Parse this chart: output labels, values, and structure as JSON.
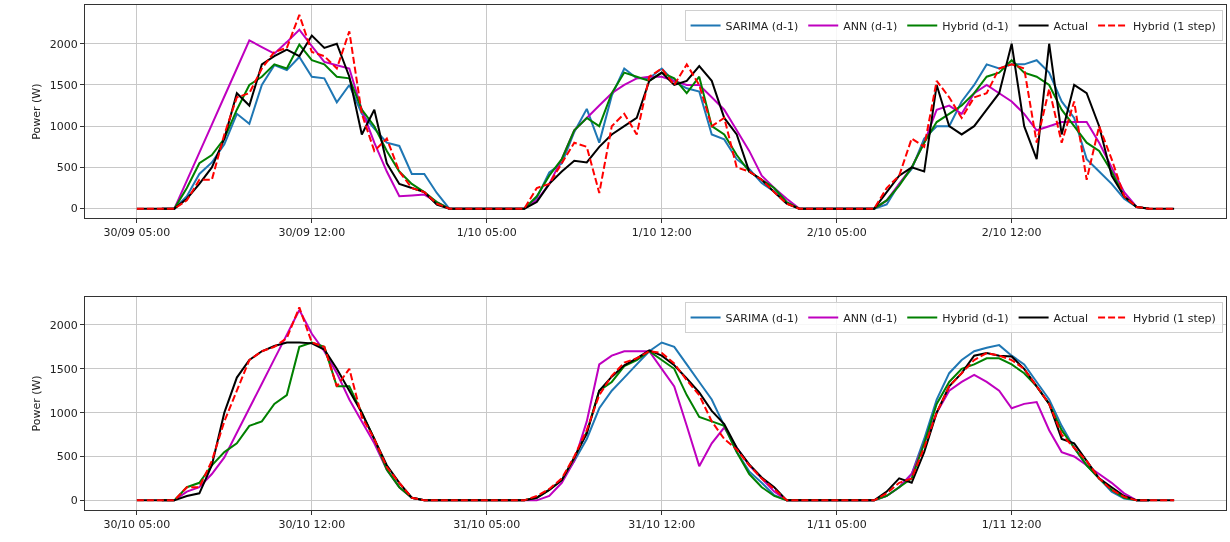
{
  "chart_data": [
    {
      "type": "line",
      "ylabel": "Power (W)",
      "grid": true,
      "legend": "top right",
      "categories": [
        "30/09 05:00",
        null,
        null,
        null,
        null,
        null,
        null,
        null,
        null,
        null,
        null,
        null,
        null,
        null,
        "30/09 12:00",
        null,
        null,
        null,
        null,
        null,
        null,
        null,
        null,
        null,
        null,
        null,
        null,
        null,
        "1/10 05:00",
        null,
        null,
        null,
        null,
        null,
        null,
        null,
        null,
        null,
        null,
        null,
        null,
        null,
        "1/10 12:00",
        null,
        null,
        null,
        null,
        null,
        null,
        null,
        null,
        null,
        null,
        null,
        null,
        null,
        "2/10 05:00",
        null,
        null,
        null,
        null,
        null,
        null,
        null,
        null,
        null,
        null,
        null,
        null,
        null,
        "2/10 12:00",
        null,
        null,
        null,
        null,
        null,
        null,
        null,
        null,
        null,
        null,
        null,
        null,
        null
      ],
      "ylim": [
        -115,
        2470
      ],
      "yticks": [
        0,
        500,
        1000,
        1500,
        2000
      ],
      "series": [
        {
          "name": "SARIMA (d-1)",
          "color": "#1f77b4",
          "line_style": "solid",
          "values": [
            null,
            null,
            0,
            0,
            150,
            420,
            560,
            780,
            1150,
            1030,
            1500,
            1740,
            1680,
            1840,
            1600,
            1580,
            1290,
            1500,
            1150,
            970,
            800,
            760,
            420,
            420,
            190,
            0,
            0,
            0,
            0,
            0,
            0,
            0,
            130,
            440,
            550,
            930,
            1210,
            800,
            1370,
            1700,
            1580,
            1580,
            1700,
            1540,
            1460,
            1420,
            900,
            840,
            600,
            480,
            310,
            210,
            70,
            0,
            0,
            0,
            0,
            0,
            0,
            0,
            50,
            300,
            480,
            850,
            1000,
            1000,
            1300,
            1500,
            1750,
            1700,
            1750,
            1750,
            1800,
            1650,
            1300,
            1100,
            600,
            450,
            300,
            120,
            20,
            0,
            null,
            null
          ]
        },
        {
          "name": "ANN (d-1)",
          "color": "#bf00bf",
          "line_style": "solid",
          "values": [
            null,
            null,
            0,
            0,
            340,
            680,
            1020,
            1360,
            1700,
            2040,
            1960,
            1880,
            2020,
            2170,
            1970,
            1780,
            1740,
            1700,
            1200,
            800,
            450,
            150,
            160,
            170,
            80,
            0,
            0,
            0,
            0,
            0,
            0,
            0,
            100,
            300,
            600,
            950,
            1100,
            1250,
            1400,
            1500,
            1580,
            1600,
            1600,
            1550,
            1500,
            1500,
            1350,
            1200,
            950,
            700,
            400,
            250,
            120,
            0,
            0,
            0,
            0,
            0,
            0,
            0,
            100,
            300,
            500,
            800,
            1200,
            1250,
            1150,
            1400,
            1500,
            1400,
            1300,
            1150,
            950,
            1000,
            1050,
            1050,
            1050,
            800,
            500,
            200,
            20,
            0,
            null,
            null
          ]
        },
        {
          "name": "Hybrid (d-1)",
          "color": "#008000",
          "line_style": "solid",
          "values": [
            null,
            null,
            0,
            0,
            250,
            550,
            650,
            850,
            1200,
            1500,
            1600,
            1750,
            1700,
            1990,
            1800,
            1750,
            1600,
            1580,
            1200,
            1000,
            700,
            450,
            300,
            200,
            80,
            0,
            0,
            0,
            0,
            0,
            0,
            0,
            150,
            400,
            600,
            950,
            1100,
            1000,
            1400,
            1650,
            1600,
            1550,
            1650,
            1580,
            1400,
            1600,
            1000,
            900,
            650,
            450,
            350,
            250,
            80,
            0,
            0,
            0,
            0,
            0,
            0,
            0,
            100,
            280,
            500,
            800,
            1050,
            1150,
            1250,
            1400,
            1600,
            1650,
            1800,
            1650,
            1600,
            1500,
            1200,
            1000,
            800,
            700,
            450,
            150,
            20,
            0,
            null,
            null
          ]
        },
        {
          "name": "Actual",
          "color": "#000000",
          "line_style": "solid",
          "values": [
            0,
            0,
            0,
            0,
            120,
            300,
            500,
            850,
            1400,
            1250,
            1750,
            1850,
            1930,
            1850,
            2100,
            1950,
            2000,
            1600,
            900,
            1200,
            550,
            300,
            250,
            200,
            50,
            0,
            0,
            0,
            0,
            0,
            0,
            0,
            80,
            300,
            450,
            580,
            560,
            750,
            900,
            1000,
            1100,
            1550,
            1650,
            1500,
            1550,
            1730,
            1550,
            1100,
            900,
            450,
            350,
            200,
            60,
            0,
            0,
            0,
            0,
            0,
            0,
            0,
            200,
            400,
            500,
            450,
            1500,
            1000,
            900,
            1000,
            1200,
            1400,
            2000,
            1000,
            600,
            2000,
            900,
            1500,
            1400,
            1000,
            400,
            150,
            20,
            0,
            0,
            0
          ]
        },
        {
          "name": "Hybrid (1 step)",
          "color": "#ff0000",
          "line_style": "dashed",
          "values": [
            0,
            0,
            0,
            0,
            100,
            350,
            350,
            900,
            1350,
            1400,
            1700,
            1900,
            1950,
            2350,
            1900,
            1850,
            1700,
            2150,
            1150,
            700,
            850,
            450,
            250,
            200,
            60,
            0,
            0,
            0,
            0,
            0,
            0,
            0,
            250,
            300,
            550,
            800,
            750,
            190,
            1000,
            1150,
            900,
            1600,
            1700,
            1500,
            1750,
            1500,
            1000,
            1100,
            500,
            450,
            350,
            200,
            60,
            0,
            0,
            0,
            0,
            0,
            0,
            0,
            250,
            400,
            850,
            750,
            1550,
            1350,
            1100,
            1350,
            1400,
            1700,
            1750,
            1700,
            800,
            1450,
            800,
            1300,
            350,
            1000,
            600,
            150,
            20,
            0,
            0,
            0
          ]
        }
      ]
    },
    {
      "type": "line",
      "ylabel": "Power (W)",
      "grid": true,
      "legend": "top right",
      "categories": [
        "30/10 05:00",
        null,
        null,
        null,
        null,
        null,
        null,
        null,
        null,
        null,
        null,
        null,
        null,
        null,
        "30/10 12:00",
        null,
        null,
        null,
        null,
        null,
        null,
        null,
        null,
        null,
        null,
        null,
        null,
        null,
        "31/10 05:00",
        null,
        null,
        null,
        null,
        null,
        null,
        null,
        null,
        null,
        null,
        null,
        null,
        null,
        "31/10 12:00",
        null,
        null,
        null,
        null,
        null,
        null,
        null,
        null,
        null,
        null,
        null,
        null,
        null,
        "1/11 05:00",
        null,
        null,
        null,
        null,
        null,
        null,
        null,
        null,
        null,
        null,
        null,
        null,
        null,
        "1/11 12:00",
        null,
        null,
        null,
        null,
        null,
        null,
        null,
        null,
        null,
        null,
        null,
        null,
        null
      ],
      "ylim": [
        -110,
        2320
      ],
      "yticks": [
        0,
        500,
        1000,
        1500,
        2000
      ],
      "series": [
        {
          "name": "SARIMA (d-1)",
          "color": "#1f77b4",
          "line_style": "solid",
          "values": [
            null,
            null,
            null,
            null,
            null,
            null,
            null,
            null,
            null,
            null,
            null,
            null,
            null,
            null,
            null,
            null,
            null,
            null,
            null,
            null,
            null,
            null,
            null,
            null,
            null,
            null,
            null,
            null,
            null,
            null,
            null,
            null,
            null,
            null,
            230,
            450,
            700,
            1050,
            1250,
            1400,
            1550,
            1700,
            1800,
            1750,
            1550,
            1350,
            1150,
            850,
            550,
            330,
            200,
            60,
            0,
            0,
            0,
            0,
            0,
            0,
            0,
            0,
            50,
            150,
            300,
            700,
            1150,
            1450,
            1600,
            1700,
            1740,
            1770,
            1650,
            1550,
            1350,
            1150,
            850,
            600,
            400,
            250,
            100,
            20,
            0,
            0,
            null,
            null
          ]
        },
        {
          "name": "ANN (d-1)",
          "color": "#bf00bf",
          "line_style": "solid",
          "values": [
            null,
            null,
            0,
            0,
            100,
            150,
            300,
            490,
            770,
            1050,
            1330,
            1610,
            1890,
            2170,
            1900,
            1700,
            1450,
            1150,
            900,
            650,
            350,
            150,
            30,
            0,
            0,
            0,
            0,
            0,
            0,
            0,
            0,
            0,
            0,
            50,
            200,
            450,
            900,
            1550,
            1650,
            1700,
            1700,
            1700,
            1500,
            1300,
            850,
            390,
            650,
            830,
            600,
            400,
            250,
            100,
            0,
            0,
            0,
            0,
            0,
            0,
            0,
            0,
            50,
            150,
            300,
            650,
            1000,
            1250,
            1350,
            1430,
            1350,
            1250,
            1050,
            1100,
            1120,
            800,
            550,
            500,
            400,
            300,
            200,
            80,
            0,
            0,
            null,
            null
          ]
        },
        {
          "name": "Hybrid (d-1)",
          "color": "#008000",
          "line_style": "solid",
          "values": [
            null,
            null,
            0,
            0,
            150,
            200,
            400,
            550,
            650,
            850,
            900,
            1100,
            1200,
            1750,
            1800,
            1750,
            1300,
            1300,
            1000,
            700,
            350,
            150,
            30,
            0,
            0,
            0,
            0,
            0,
            0,
            0,
            0,
            0,
            30,
            120,
            230,
            480,
            780,
            1250,
            1350,
            1530,
            1600,
            1700,
            1600,
            1500,
            1200,
            950,
            900,
            850,
            550,
            300,
            150,
            50,
            0,
            0,
            0,
            0,
            0,
            0,
            0,
            0,
            50,
            150,
            250,
            650,
            1100,
            1350,
            1500,
            1550,
            1620,
            1620,
            1550,
            1450,
            1300,
            1100,
            800,
            600,
            400,
            250,
            120,
            30,
            0,
            0,
            null,
            null
          ]
        },
        {
          "name": "Actual",
          "color": "#000000",
          "line_style": "solid",
          "values": [
            0,
            0,
            0,
            0,
            50,
            80,
            400,
            1000,
            1400,
            1600,
            1700,
            1760,
            1800,
            1800,
            1790,
            1720,
            1500,
            1250,
            1000,
            700,
            400,
            200,
            30,
            0,
            0,
            0,
            0,
            0,
            0,
            0,
            0,
            0,
            30,
            120,
            230,
            490,
            760,
            1250,
            1410,
            1540,
            1620,
            1710,
            1650,
            1540,
            1390,
            1230,
            1020,
            870,
            600,
            410,
            260,
            150,
            0,
            0,
            0,
            0,
            0,
            0,
            0,
            0,
            100,
            250,
            200,
            550,
            1000,
            1300,
            1450,
            1650,
            1680,
            1650,
            1640,
            1500,
            1300,
            1100,
            700,
            650,
            450,
            250,
            150,
            50,
            0,
            0,
            0,
            0
          ]
        },
        {
          "name": "Hybrid (1 step)",
          "color": "#ff0000",
          "line_style": "dashed",
          "values": [
            0,
            0,
            0,
            0,
            150,
            150,
            450,
            900,
            1250,
            1600,
            1700,
            1750,
            1850,
            2200,
            1800,
            1750,
            1300,
            1500,
            950,
            700,
            380,
            200,
            30,
            0,
            0,
            0,
            0,
            0,
            0,
            0,
            0,
            0,
            50,
            130,
            250,
            500,
            800,
            1200,
            1420,
            1570,
            1620,
            1700,
            1680,
            1560,
            1370,
            1200,
            900,
            700,
            580,
            400,
            250,
            130,
            0,
            0,
            0,
            0,
            0,
            0,
            0,
            0,
            80,
            200,
            250,
            600,
            1000,
            1300,
            1450,
            1600,
            1680,
            1650,
            1600,
            1500,
            1300,
            1100,
            750,
            600,
            450,
            250,
            120,
            40,
            0,
            0,
            0,
            0
          ]
        }
      ]
    }
  ]
}
